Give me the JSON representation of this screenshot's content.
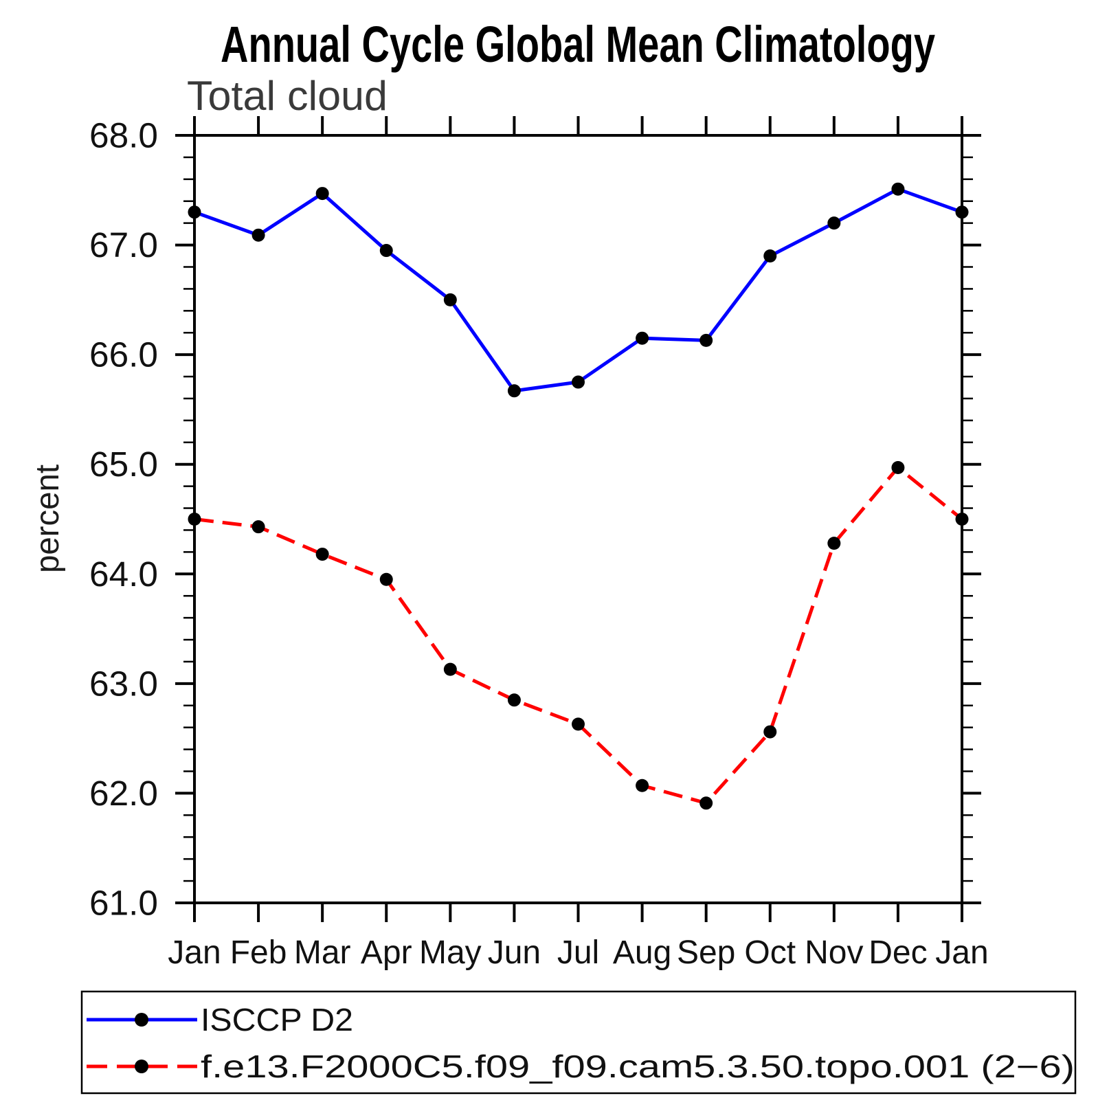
{
  "page": {
    "background": "#ffffff"
  },
  "chart_data": {
    "type": "line",
    "title": "Annual Cycle Global Mean Climatology",
    "subtitle": "Total cloud",
    "xlabel": "",
    "ylabel": "percent",
    "categories": [
      "Jan",
      "Feb",
      "Mar",
      "Apr",
      "May",
      "Jun",
      "Jul",
      "Aug",
      "Sep",
      "Oct",
      "Nov",
      "Dec",
      "Jan"
    ],
    "series": [
      {
        "name": "ISCCP D2",
        "color": "#0000ff",
        "line_style": "solid",
        "marker": "filled-circle",
        "marker_color": "#000000",
        "values": [
          67.3,
          67.09,
          67.47,
          66.95,
          66.5,
          65.67,
          65.75,
          66.15,
          66.13,
          66.9,
          67.2,
          67.51,
          67.3
        ]
      },
      {
        "name": "f.e13.F2000C5.f09_f09.cam5.3.50.topo.001 (2−6)",
        "color": "#ff0000",
        "line_style": "dashed",
        "marker": "filled-circle",
        "marker_color": "#000000",
        "values": [
          64.5,
          64.43,
          64.18,
          63.95,
          63.13,
          62.85,
          62.63,
          62.07,
          61.91,
          62.56,
          64.28,
          64.97,
          64.5
        ]
      }
    ],
    "ylim": [
      61.0,
      68.0
    ],
    "y_major_step": 1.0,
    "y_minor_step": 0.2,
    "y_tick_labels": [
      "61.0",
      "62.0",
      "63.0",
      "64.0",
      "65.0",
      "66.0",
      "67.0",
      "68.0"
    ],
    "grid": false,
    "frame": "box-with-outward-ticks",
    "legend_position": "bottom-left-box",
    "axis_color": "#000000",
    "text_color": "#000000",
    "subtitle_color": "#3a3a3a"
  }
}
